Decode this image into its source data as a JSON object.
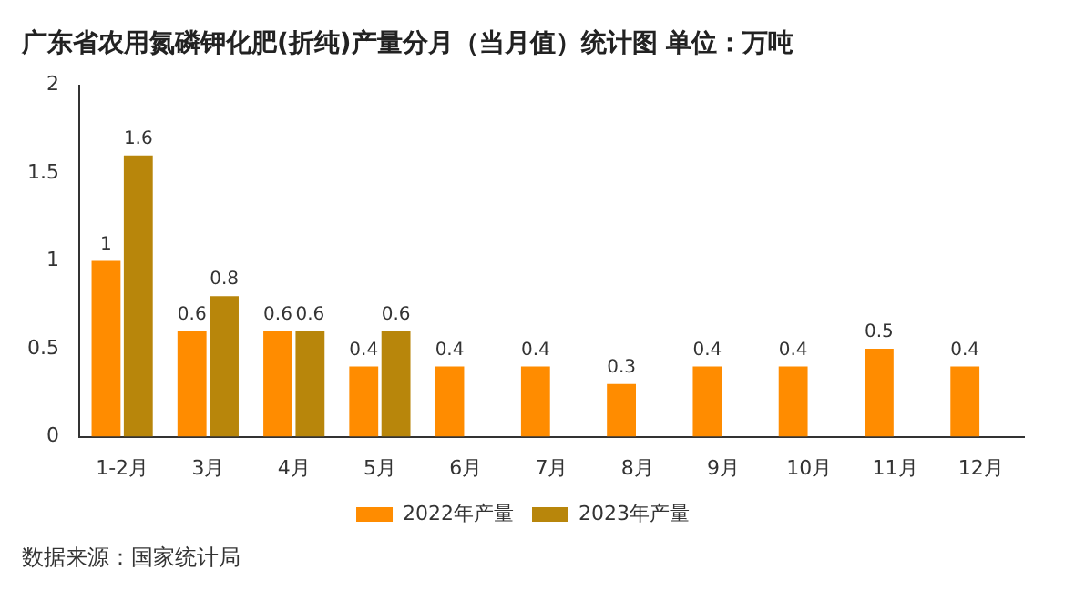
{
  "chart_data": {
    "type": "bar",
    "title": "广东省农用氮磷钾化肥(折纯)产量分月（当月值）统计图 单位：万吨",
    "categories": [
      "1-2月",
      "3月",
      "4月",
      "5月",
      "6月",
      "7月",
      "8月",
      "9月",
      "10月",
      "11月",
      "12月"
    ],
    "series": [
      {
        "name": "2022年产量",
        "color": "#ff8c00",
        "values": [
          1,
          0.6,
          0.6,
          0.4,
          0.4,
          0.4,
          0.3,
          0.4,
          0.4,
          0.5,
          0.4
        ]
      },
      {
        "name": "2023年产量",
        "color": "#b8860b",
        "values": [
          1.6,
          0.8,
          0.6,
          0.6,
          null,
          null,
          null,
          null,
          null,
          null,
          null
        ]
      }
    ],
    "ylim": [
      0,
      2
    ],
    "yticks": [
      0,
      0.5,
      1,
      1.5,
      2
    ],
    "grid": false,
    "legend": "bottom",
    "data_labels": true,
    "annotations": [
      "数据来源：国家统计局"
    ]
  }
}
